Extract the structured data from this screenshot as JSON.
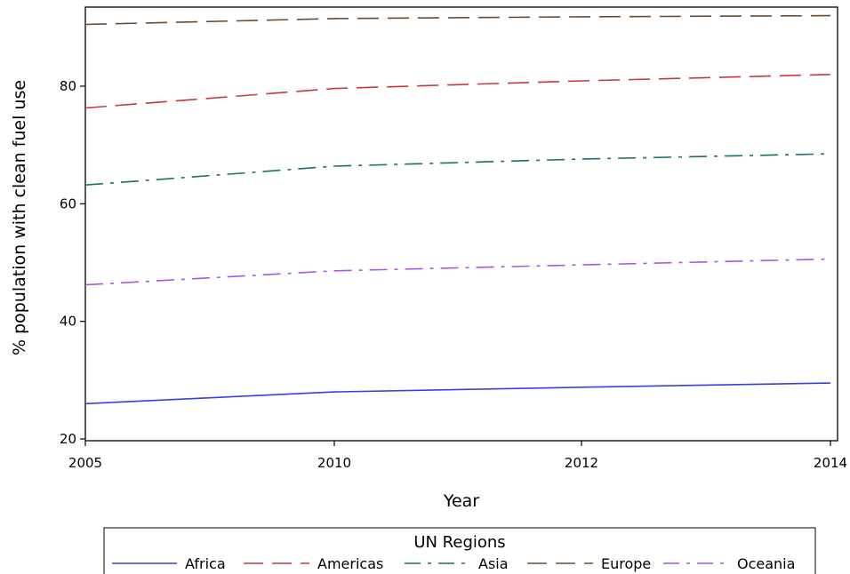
{
  "chart_data": {
    "type": "line",
    "x": [
      2005,
      2010,
      2012,
      2014
    ],
    "xlabel": "Year",
    "ylabel": "% population with clean fuel use",
    "ylim": [
      20,
      93
    ],
    "x_ticks": [
      "2005",
      "2010",
      "2012",
      "2014"
    ],
    "y_ticks": [
      20,
      40,
      60,
      80
    ],
    "grid": false,
    "legend": {
      "title": "UN Regions",
      "placement": "bottom",
      "entries": [
        "Africa",
        "Americas",
        "Asia",
        "Europe",
        "Oceania"
      ]
    },
    "series": [
      {
        "name": "Africa",
        "color": "#3b3be8",
        "dash": "solid",
        "values": [
          26.0,
          28.0,
          28.8,
          29.5
        ]
      },
      {
        "name": "Americas",
        "color": "#c8393f",
        "dash": "longdash",
        "values": [
          76.3,
          79.6,
          80.9,
          82.0
        ]
      },
      {
        "name": "Asia",
        "color": "#1d6f6a",
        "dash": "dashdot",
        "values": [
          63.2,
          66.4,
          67.6,
          68.5
        ]
      },
      {
        "name": "Europe",
        "color": "#6b4a2f",
        "dash": "longdash",
        "values": [
          90.5,
          91.5,
          91.8,
          92.0
        ]
      },
      {
        "name": "Oceania",
        "color": "#a855e8",
        "dash": "dashdot",
        "values": [
          46.2,
          48.6,
          49.6,
          50.6
        ]
      }
    ]
  }
}
